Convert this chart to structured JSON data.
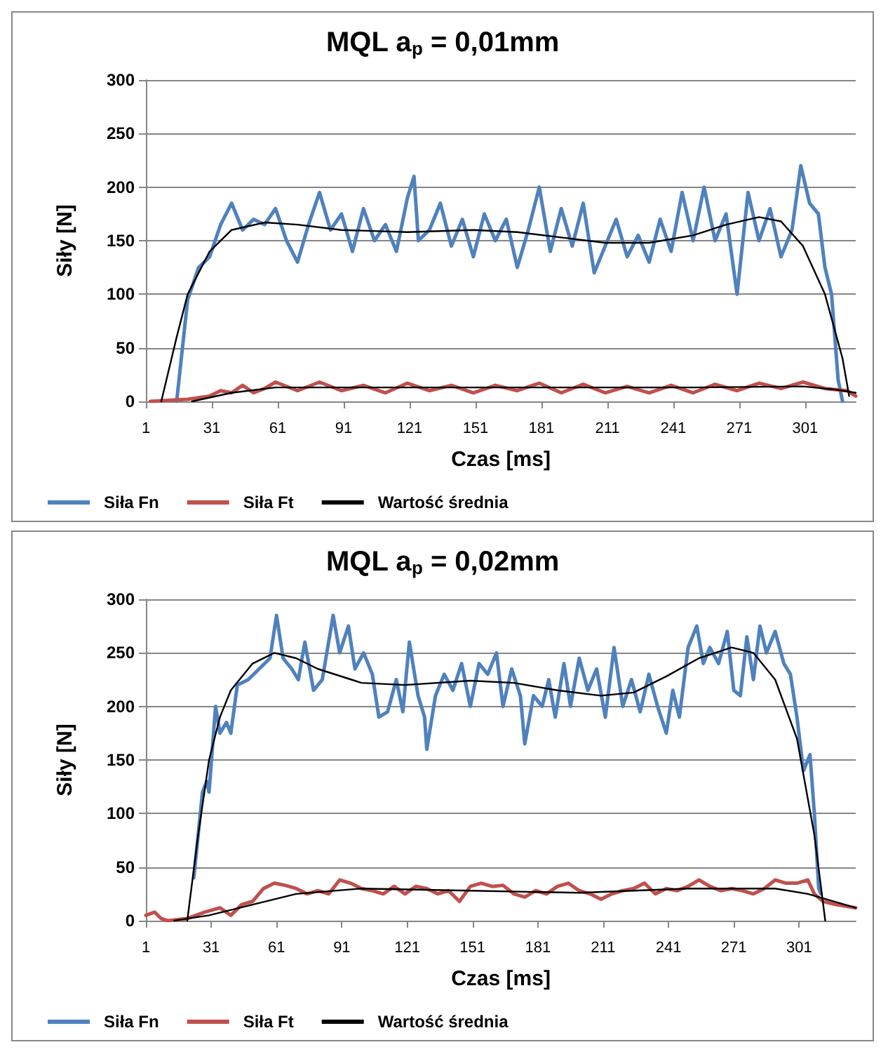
{
  "chart_data": [
    {
      "type": "line",
      "title": "MQL a$_{p}$ = 0,01mm",
      "xlabel": "Czas [ms]",
      "ylabel": "Siły [N]",
      "xlim": [
        1,
        324
      ],
      "xticks": [
        1,
        31,
        61,
        91,
        121,
        151,
        181,
        211,
        241,
        271,
        301
      ],
      "ylim": [
        0,
        300
      ],
      "yticks": [
        0,
        50,
        100,
        150,
        200,
        250,
        300
      ],
      "grid": "y",
      "legend": "bottom",
      "marker": "none",
      "line_style": "solid",
      "series": [
        {
          "name": "Siła Fn",
          "color": "#4f81bd",
          "x": [
            15,
            20,
            25,
            30,
            35,
            40,
            45,
            50,
            55,
            60,
            65,
            70,
            75,
            80,
            85,
            90,
            95,
            100,
            105,
            110,
            115,
            120,
            123,
            125,
            130,
            135,
            140,
            145,
            150,
            155,
            160,
            165,
            170,
            175,
            180,
            185,
            190,
            195,
            200,
            205,
            210,
            215,
            220,
            225,
            230,
            235,
            240,
            245,
            250,
            255,
            260,
            265,
            270,
            275,
            280,
            285,
            290,
            295,
            299,
            303,
            307,
            310,
            313,
            316,
            318
          ],
          "values": [
            0,
            95,
            125,
            135,
            165,
            185,
            160,
            170,
            165,
            180,
            150,
            130,
            165,
            195,
            160,
            175,
            140,
            180,
            150,
            165,
            140,
            190,
            210,
            150,
            160,
            185,
            145,
            170,
            135,
            175,
            150,
            170,
            125,
            160,
            200,
            140,
            180,
            145,
            185,
            120,
            145,
            170,
            135,
            155,
            130,
            170,
            140,
            195,
            150,
            200,
            150,
            175,
            100,
            195,
            150,
            180,
            135,
            160,
            220,
            185,
            175,
            125,
            100,
            20,
            0
          ]
        },
        {
          "name": "Siła Ft",
          "color": "#c0504d",
          "x": [
            3,
            20,
            30,
            35,
            40,
            45,
            50,
            55,
            60,
            70,
            80,
            90,
            100,
            110,
            120,
            130,
            140,
            150,
            160,
            170,
            180,
            190,
            200,
            210,
            220,
            230,
            240,
            250,
            260,
            270,
            280,
            290,
            300,
            310,
            320,
            324
          ],
          "values": [
            0,
            2,
            5,
            10,
            8,
            15,
            8,
            12,
            18,
            10,
            18,
            10,
            15,
            8,
            17,
            10,
            15,
            8,
            15,
            10,
            17,
            8,
            16,
            8,
            14,
            8,
            15,
            8,
            16,
            10,
            17,
            12,
            18,
            12,
            10,
            5
          ]
        },
        {
          "name": "Wartość średnia",
          "color": "#000000",
          "x": [
            8,
            15,
            20,
            30,
            40,
            55,
            70,
            90,
            120,
            150,
            170,
            190,
            210,
            230,
            250,
            265,
            280,
            290,
            300,
            310,
            318,
            321
          ],
          "values": [
            0,
            60,
            100,
            140,
            160,
            167,
            165,
            160,
            158,
            160,
            158,
            153,
            148,
            148,
            155,
            165,
            172,
            168,
            145,
            100,
            40,
            5
          ]
        },
        {
          "color": "#000000",
          "x": [
            22,
            40,
            60,
            100,
            150,
            200,
            250,
            300,
            315,
            324
          ],
          "values": [
            0,
            8,
            13,
            13,
            13,
            13,
            13,
            14,
            11,
            8
          ]
        }
      ]
    },
    {
      "type": "line",
      "title": "MQL a$_{p}$ = 0,02mm",
      "xlabel": "Czas [ms]",
      "ylabel": "Siły [N]",
      "xlim": [
        1,
        327
      ],
      "xticks": [
        1,
        31,
        61,
        91,
        121,
        151,
        181,
        211,
        241,
        271,
        301
      ],
      "ylim": [
        0,
        300
      ],
      "yticks": [
        0,
        50,
        100,
        150,
        200,
        250,
        300
      ],
      "grid": "y",
      "legend": "bottom",
      "marker": "none",
      "line_style": "solid",
      "series": [
        {
          "name": "Siła Fn",
          "color": "#4f81bd",
          "x": [
            23,
            25,
            27,
            29,
            30,
            33,
            35,
            38,
            40,
            43,
            48,
            53,
            58,
            61,
            64,
            68,
            71,
            74,
            78,
            82,
            87,
            90,
            94,
            97,
            101,
            105,
            108,
            112,
            116,
            119,
            122,
            126,
            129,
            130,
            134,
            138,
            142,
            146,
            150,
            154,
            158,
            162,
            165,
            169,
            173,
            175,
            179,
            183,
            186,
            189,
            193,
            196,
            200,
            204,
            208,
            212,
            216,
            220,
            224,
            228,
            232,
            236,
            240,
            243,
            246,
            250,
            254,
            257,
            260,
            264,
            268,
            271,
            274,
            277,
            280,
            283,
            286,
            290,
            294,
            297,
            300,
            303,
            306,
            308,
            310,
            311
          ],
          "values": [
            40,
            80,
            120,
            130,
            120,
            200,
            175,
            185,
            175,
            220,
            225,
            235,
            245,
            285,
            245,
            235,
            225,
            260,
            215,
            225,
            285,
            250,
            275,
            235,
            250,
            230,
            190,
            195,
            225,
            195,
            260,
            210,
            190,
            160,
            210,
            230,
            215,
            240,
            200,
            240,
            230,
            250,
            200,
            235,
            210,
            165,
            210,
            200,
            225,
            190,
            240,
            200,
            245,
            215,
            235,
            190,
            255,
            200,
            225,
            195,
            230,
            200,
            175,
            215,
            190,
            255,
            275,
            240,
            255,
            240,
            270,
            215,
            210,
            265,
            225,
            275,
            250,
            270,
            240,
            230,
            190,
            140,
            155,
            100,
            30,
            25
          ]
        },
        {
          "name": "Siła Ft",
          "color": "#c0504d",
          "x": [
            1,
            5,
            8,
            11,
            20,
            28,
            35,
            40,
            45,
            50,
            55,
            60,
            65,
            70,
            75,
            80,
            85,
            90,
            95,
            100,
            105,
            110,
            115,
            120,
            125,
            130,
            135,
            140,
            145,
            150,
            155,
            160,
            165,
            170,
            175,
            180,
            185,
            190,
            195,
            200,
            205,
            210,
            215,
            220,
            225,
            230,
            235,
            240,
            245,
            250,
            255,
            260,
            265,
            270,
            275,
            280,
            285,
            290,
            295,
            300,
            305,
            308,
            312,
            318,
            327
          ],
          "values": [
            5,
            8,
            2,
            0,
            2,
            8,
            12,
            5,
            15,
            18,
            30,
            35,
            33,
            30,
            25,
            28,
            25,
            38,
            35,
            30,
            28,
            25,
            32,
            25,
            32,
            30,
            25,
            28,
            18,
            32,
            35,
            32,
            33,
            25,
            22,
            28,
            25,
            32,
            35,
            28,
            25,
            20,
            25,
            28,
            30,
            35,
            25,
            30,
            28,
            32,
            38,
            32,
            28,
            30,
            28,
            25,
            30,
            38,
            35,
            35,
            38,
            25,
            18,
            15,
            12
          ]
        },
        {
          "name": "Wartość średnia",
          "color": "#000000",
          "x": [
            20,
            25,
            30,
            35,
            40,
            50,
            60,
            70,
            80,
            100,
            120,
            150,
            170,
            190,
            210,
            225,
            240,
            255,
            270,
            280,
            290,
            300,
            308,
            313
          ],
          "values": [
            0,
            80,
            150,
            190,
            215,
            240,
            250,
            245,
            235,
            222,
            220,
            224,
            222,
            215,
            210,
            213,
            228,
            245,
            255,
            250,
            225,
            170,
            80,
            0
          ]
        },
        {
          "color": "#000000",
          "x": [
            14,
            30,
            50,
            70,
            100,
            150,
            200,
            250,
            290,
            305,
            327
          ],
          "values": [
            0,
            5,
            15,
            25,
            30,
            28,
            26,
            30,
            30,
            25,
            12
          ]
        }
      ]
    }
  ]
}
